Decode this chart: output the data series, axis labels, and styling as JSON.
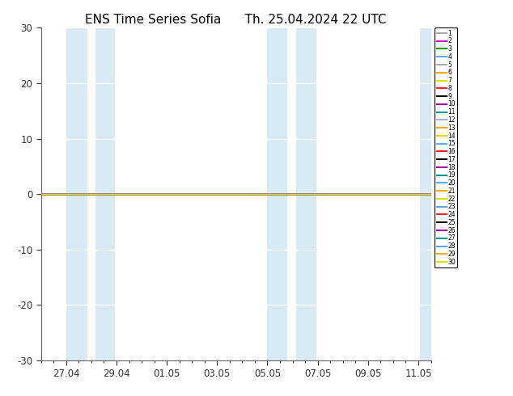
{
  "title_left": "ENS Time Series Sofia",
  "title_right": "Th. 25.04.2024 22 UTC",
  "ylim": [
    -30,
    30
  ],
  "yticks": [
    -30,
    -20,
    -10,
    0,
    10,
    20,
    30
  ],
  "xtick_labels": [
    "27.04",
    "29.04",
    "01.05",
    "03.05",
    "05.05",
    "07.05",
    "09.05",
    "11.05"
  ],
  "xtick_positions": [
    1,
    3,
    5,
    7,
    9,
    11,
    13,
    15
  ],
  "xlim": [
    0,
    15.5
  ],
  "bg_color": "#ffffff",
  "shade_color": "#daeaf5",
  "zero_line_color": "#d4c800",
  "shaded_regions": [
    [
      1.0,
      1.85
    ],
    [
      2.15,
      2.95
    ],
    [
      9.0,
      9.8
    ],
    [
      10.15,
      10.95
    ],
    [
      15.05,
      15.5
    ]
  ],
  "member_colors": [
    "#aaaaaa",
    "#cc00cc",
    "#009900",
    "#55aaff",
    "#aaaaaa",
    "#ffaa00",
    "#dddd00",
    "#ff2222",
    "#000000",
    "#aa00aa",
    "#009999",
    "#aaaaff",
    "#ffaa00",
    "#dddd00",
    "#55aaff",
    "#ff2222",
    "#000000",
    "#aa00aa",
    "#009999",
    "#55aaff",
    "#ffaa00",
    "#dddd00",
    "#55aaff",
    "#ff2222",
    "#000000",
    "#aa00aa",
    "#009999",
    "#55aaff",
    "#ffaa00",
    "#dddd00"
  ],
  "member_labels": [
    "1",
    "2",
    "3",
    "4",
    "5",
    "6",
    "7",
    "8",
    "9",
    "10",
    "11",
    "12",
    "13",
    "14",
    "15",
    "16",
    "17",
    "18",
    "19",
    "20",
    "21",
    "22",
    "23",
    "24",
    "25",
    "26",
    "27",
    "28",
    "29",
    "30"
  ],
  "title_fontsize": 11,
  "tick_fontsize": 8.5,
  "legend_fontsize": 5.5
}
